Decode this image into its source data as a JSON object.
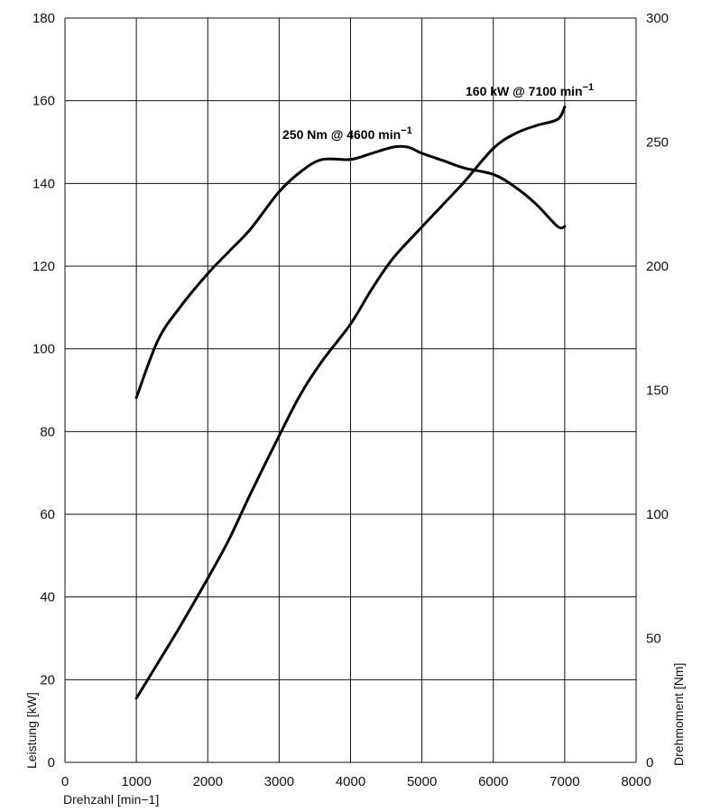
{
  "chart_data": {
    "type": "line",
    "title": "",
    "grid": true,
    "legend": "none",
    "x_axis": {
      "label": "Drehzahl [min−1]",
      "range": [
        0,
        8000
      ],
      "ticks": [
        "0",
        "1000",
        "2000",
        "3000",
        "4000",
        "5000",
        "6000",
        "7000",
        "8000"
      ]
    },
    "y_axis_left": {
      "label": "Leistung [kW]",
      "range": [
        0,
        180
      ],
      "ticks": [
        "0",
        "20",
        "40",
        "60",
        "80",
        "100",
        "120",
        "140",
        "160",
        "180"
      ]
    },
    "y_axis_right": {
      "label": "Drehmoment [Nm]",
      "range": [
        0,
        300
      ],
      "ticks": [
        "0",
        "50",
        "100",
        "150",
        "200",
        "250",
        "300"
      ]
    },
    "series": [
      {
        "axis": "left",
        "points": [
          [
            1000,
            15.5
          ],
          [
            1300,
            24
          ],
          [
            1600,
            32.5
          ],
          [
            2000,
            44.5
          ],
          [
            2300,
            54
          ],
          [
            2600,
            65
          ],
          [
            3000,
            79
          ],
          [
            3300,
            89
          ],
          [
            3600,
            97
          ],
          [
            4000,
            106
          ],
          [
            4300,
            114.5
          ],
          [
            4600,
            122
          ],
          [
            5000,
            129.5
          ],
          [
            5300,
            135
          ],
          [
            5600,
            140.5
          ],
          [
            6000,
            148.5
          ],
          [
            6300,
            152
          ],
          [
            6600,
            154
          ],
          [
            6900,
            155.5
          ],
          [
            7000,
            158.5
          ]
        ]
      },
      {
        "axis": "right",
        "points": [
          [
            1000,
            147
          ],
          [
            1300,
            170
          ],
          [
            1600,
            183
          ],
          [
            2000,
            197
          ],
          [
            2300,
            206
          ],
          [
            2600,
            215
          ],
          [
            3000,
            230
          ],
          [
            3300,
            238
          ],
          [
            3600,
            243
          ],
          [
            4000,
            243
          ],
          [
            4300,
            245.5
          ],
          [
            4600,
            248
          ],
          [
            4800,
            248
          ],
          [
            5000,
            245.5
          ],
          [
            5300,
            242.5
          ],
          [
            5600,
            239.5
          ],
          [
            6000,
            237
          ],
          [
            6300,
            232
          ],
          [
            6600,
            225
          ],
          [
            6900,
            216
          ],
          [
            7000,
            216
          ]
        ]
      }
    ],
    "annotations": [
      {
        "text": "250 Nm @ 4600 min",
        "superscript": "−1",
        "x": 4600,
        "y_right": 250
      },
      {
        "text": "160 kW @ 7100 min",
        "superscript": "−1",
        "x": 7100,
        "y_left": 160
      }
    ]
  }
}
